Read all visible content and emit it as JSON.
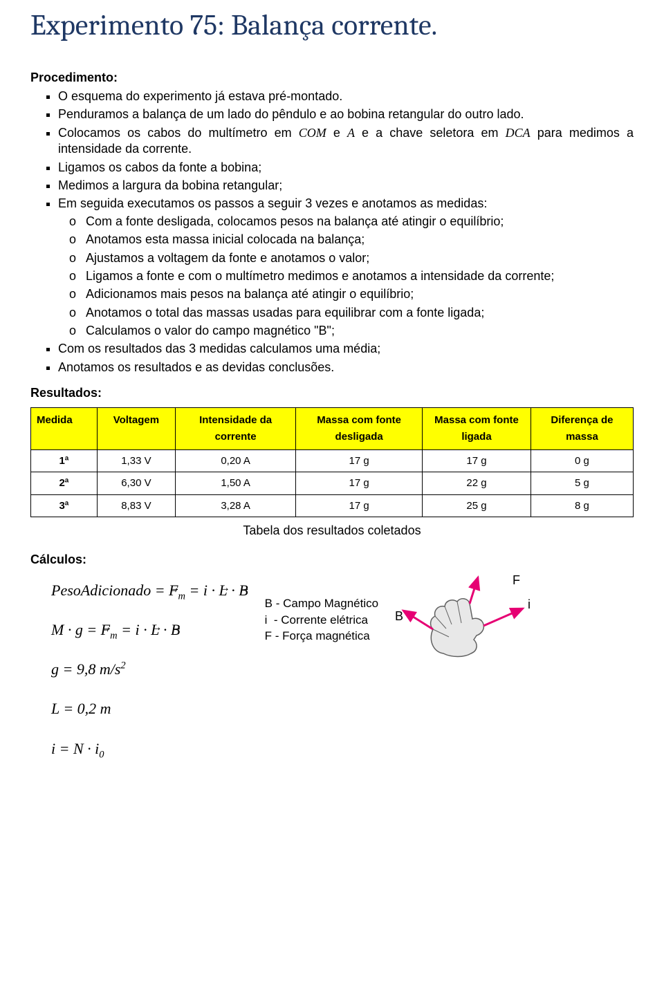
{
  "title": "Experimento 75: Balança corrente.",
  "sections": {
    "procedimento_label": "Procedimento:",
    "resultados_label": "Resultados:",
    "calculos_label": "Cálculos:"
  },
  "procedimento": {
    "items": [
      "O esquema do experimento já estava pré-montado.",
      "Penduramos a balança de um lado do pêndulo e ao bobina retangular do outro lado."
    ],
    "item_cabos_prefix": "Colocamos os cabos do multímetro em ",
    "item_cabos_com": "COM",
    "item_cabos_mid1": " e ",
    "item_cabos_a": "A",
    "item_cabos_mid2": " e a chave seletora em ",
    "item_cabos_dca": "DCA",
    "item_cabos_suffix": " para medimos a intensidade da corrente.",
    "items2": [
      "Ligamos os cabos da fonte a bobina;",
      "Medimos a largura da bobina retangular;",
      "Em seguida executamos os passos a seguir 3 vezes e anotamos as medidas:"
    ],
    "subitems": [
      "Com a fonte desligada, colocamos pesos na balança até atingir o equilíbrio;",
      "Anotamos esta massa inicial colocada na balança;",
      "Ajustamos a voltagem da fonte e anotamos o valor;",
      "Ligamos a fonte e com o multímetro medimos e anotamos a intensidade da corrente;",
      "Adicionamos mais pesos na balança até atingir o equilíbrio;",
      "Anotamos o total das massas usadas para equilibrar com a fonte ligada;",
      "Calculamos o valor do campo magnético \"B\";"
    ],
    "items3": [
      "Com os resultados das 3 medidas calculamos uma média;",
      "Anotamos os resultados e as devidas conclusões."
    ]
  },
  "results_table": {
    "columns": [
      "Medida",
      "Voltagem",
      "Intensidade da corrente",
      "Massa com fonte desligada",
      "Massa com fonte ligada",
      "Diferença de massa"
    ],
    "header_bg": "#ffff00",
    "rows": [
      [
        "1ª",
        "1,33 V",
        "0,20 A",
        "17 g",
        "17 g",
        "0 g"
      ],
      [
        "2ª",
        "6,30 V",
        "1,50 A",
        "17 g",
        "22 g",
        "5 g"
      ],
      [
        "3ª",
        "8,83 V",
        "3,28 A",
        "17 g",
        "25 g",
        "8 g"
      ]
    ],
    "caption": "Tabela dos resultados coletados",
    "col_widths": [
      "11%",
      "13%",
      "20%",
      "21%",
      "18%",
      "17%"
    ]
  },
  "formulas": {
    "f1_html": "PesoAdicionado = <span class=\"vec\">F</span><span class=\"sub\">m</span> = i · <span class=\"vec\">L</span> · <span class=\"vec\">B</span>",
    "f2_html": "M · g = <span class=\"vec\">F</span><span class=\"sub\">m</span> = i · <span class=\"vec\">L</span> · <span class=\"vec\">B</span>",
    "f3_html": "g = 9,8 m/s<span class=\"sup\">2</span>",
    "f4_html": "L = 0,2 m",
    "f5_html": "i = N · i<span class=\"sub\">0</span>"
  },
  "legend": {
    "b": "B - Campo Magnético",
    "i": "i  - Corrente elétrica",
    "f": "F - Força magnética"
  },
  "hand_figure": {
    "label_F": "F",
    "label_B": "B",
    "label_i": "i",
    "arrow_color": "#e60073",
    "hand_stroke": "#606060",
    "hand_fill": "#e8e8e8"
  }
}
